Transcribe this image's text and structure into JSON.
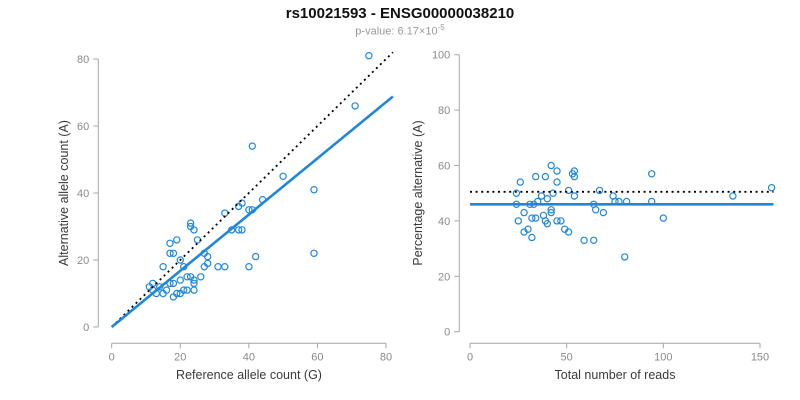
{
  "header": {
    "title": "rs10021593 - ENSG00000038210",
    "pvalue_prefix": "p-value: 6.17×10",
    "pvalue_exponent": "-5"
  },
  "colors": {
    "point_blue": "#1F87DB",
    "fit_line_blue": "#1F87DB",
    "dotted_line_black": "#000000",
    "axis_gray": "#a6a6a6",
    "tick_text_gray": "#8a8a8a",
    "label_text": "#3a3a3a",
    "subtitle_gray": "#999999"
  },
  "chart_data": [
    {
      "type": "scatter",
      "name": "allele-counts",
      "xlabel": "Reference allele count (G)",
      "ylabel": "Alternative allele count (A)",
      "xlim": [
        0,
        82
      ],
      "ylim": [
        0,
        82
      ],
      "xticks": [
        0,
        20,
        40,
        60,
        80
      ],
      "yticks": [
        0,
        20,
        40,
        60,
        80
      ],
      "grid": false,
      "points": [
        [
          11,
          12
        ],
        [
          12,
          11
        ],
        [
          12,
          13
        ],
        [
          13,
          10
        ],
        [
          14,
          12
        ],
        [
          15,
          10
        ],
        [
          15,
          18
        ],
        [
          16,
          11
        ],
        [
          17,
          13
        ],
        [
          17,
          22
        ],
        [
          17,
          25
        ],
        [
          18,
          9
        ],
        [
          18,
          13
        ],
        [
          18,
          22
        ],
        [
          19,
          10
        ],
        [
          19,
          26
        ],
        [
          20,
          10
        ],
        [
          20,
          14
        ],
        [
          20,
          20
        ],
        [
          21,
          11
        ],
        [
          21,
          18
        ],
        [
          22,
          11
        ],
        [
          22,
          15
        ],
        [
          23,
          15
        ],
        [
          23,
          30
        ],
        [
          23,
          31
        ],
        [
          24,
          11
        ],
        [
          24,
          13
        ],
        [
          24,
          14
        ],
        [
          24,
          29
        ],
        [
          25,
          26
        ],
        [
          26,
          15
        ],
        [
          27,
          18
        ],
        [
          27,
          22
        ],
        [
          28,
          19
        ],
        [
          28,
          21
        ],
        [
          31,
          18
        ],
        [
          33,
          18
        ],
        [
          33,
          34
        ],
        [
          35,
          29
        ],
        [
          37,
          29
        ],
        [
          37,
          36
        ],
        [
          38,
          29
        ],
        [
          38,
          37
        ],
        [
          40,
          18
        ],
        [
          40,
          35
        ],
        [
          41,
          35
        ],
        [
          41,
          54
        ],
        [
          42,
          21
        ],
        [
          44,
          38
        ],
        [
          50,
          45
        ],
        [
          59,
          22
        ],
        [
          59,
          41
        ],
        [
          71,
          66
        ],
        [
          75,
          81
        ]
      ],
      "lines": [
        {
          "name": "identity",
          "style": "dotted",
          "color": "#000000",
          "width": 1.8,
          "from": [
            0,
            0
          ],
          "to": [
            82,
            82
          ]
        },
        {
          "name": "regression",
          "style": "solid",
          "color": "#1F87DB",
          "width": 2.6,
          "from": [
            0,
            0
          ],
          "to": [
            82,
            68.8
          ]
        }
      ]
    },
    {
      "type": "scatter",
      "name": "percentage-vs-reads",
      "xlabel": "Total number of reads",
      "ylabel": "Percentage alternative (A)",
      "xlim": [
        0,
        158
      ],
      "ylim": [
        0,
        100
      ],
      "xticks": [
        0,
        50,
        100,
        150
      ],
      "yticks": [
        0,
        20,
        40,
        60,
        80,
        100
      ],
      "grid": false,
      "points": [
        [
          24,
          50
        ],
        [
          24,
          46
        ],
        [
          25,
          40
        ],
        [
          26,
          54
        ],
        [
          28,
          43
        ],
        [
          28,
          36
        ],
        [
          30,
          37
        ],
        [
          31,
          46
        ],
        [
          32,
          34
        ],
        [
          32,
          41
        ],
        [
          33,
          46
        ],
        [
          34,
          41
        ],
        [
          34,
          56
        ],
        [
          35,
          47
        ],
        [
          37,
          49
        ],
        [
          38,
          42
        ],
        [
          39,
          40
        ],
        [
          39,
          56
        ],
        [
          40,
          39
        ],
        [
          40,
          48
        ],
        [
          42,
          43
        ],
        [
          42,
          44
        ],
        [
          42,
          60
        ],
        [
          43,
          50
        ],
        [
          45,
          40
        ],
        [
          45,
          54
        ],
        [
          45,
          58
        ],
        [
          47,
          40
        ],
        [
          49,
          37
        ],
        [
          51,
          36
        ],
        [
          51,
          51
        ],
        [
          53,
          57
        ],
        [
          54,
          49
        ],
        [
          54,
          56
        ],
        [
          54,
          58
        ],
        [
          59,
          33
        ],
        [
          64,
          33
        ],
        [
          64,
          46
        ],
        [
          65,
          44
        ],
        [
          67,
          51
        ],
        [
          69,
          43
        ],
        [
          74,
          49
        ],
        [
          75,
          47
        ],
        [
          77,
          47
        ],
        [
          80,
          27
        ],
        [
          81,
          47
        ],
        [
          94,
          47
        ],
        [
          94,
          57
        ],
        [
          100,
          41
        ],
        [
          136,
          49
        ],
        [
          156,
          52
        ]
      ],
      "lines": [
        {
          "name": "expected-50pct",
          "style": "dotted",
          "color": "#000000",
          "width": 1.8,
          "from": [
            0,
            50.5
          ],
          "to": [
            157,
            50.5
          ]
        },
        {
          "name": "observed-mean",
          "style": "solid",
          "color": "#1F87DB",
          "width": 2.6,
          "from": [
            0,
            46
          ],
          "to": [
            157,
            46
          ]
        }
      ]
    }
  ]
}
